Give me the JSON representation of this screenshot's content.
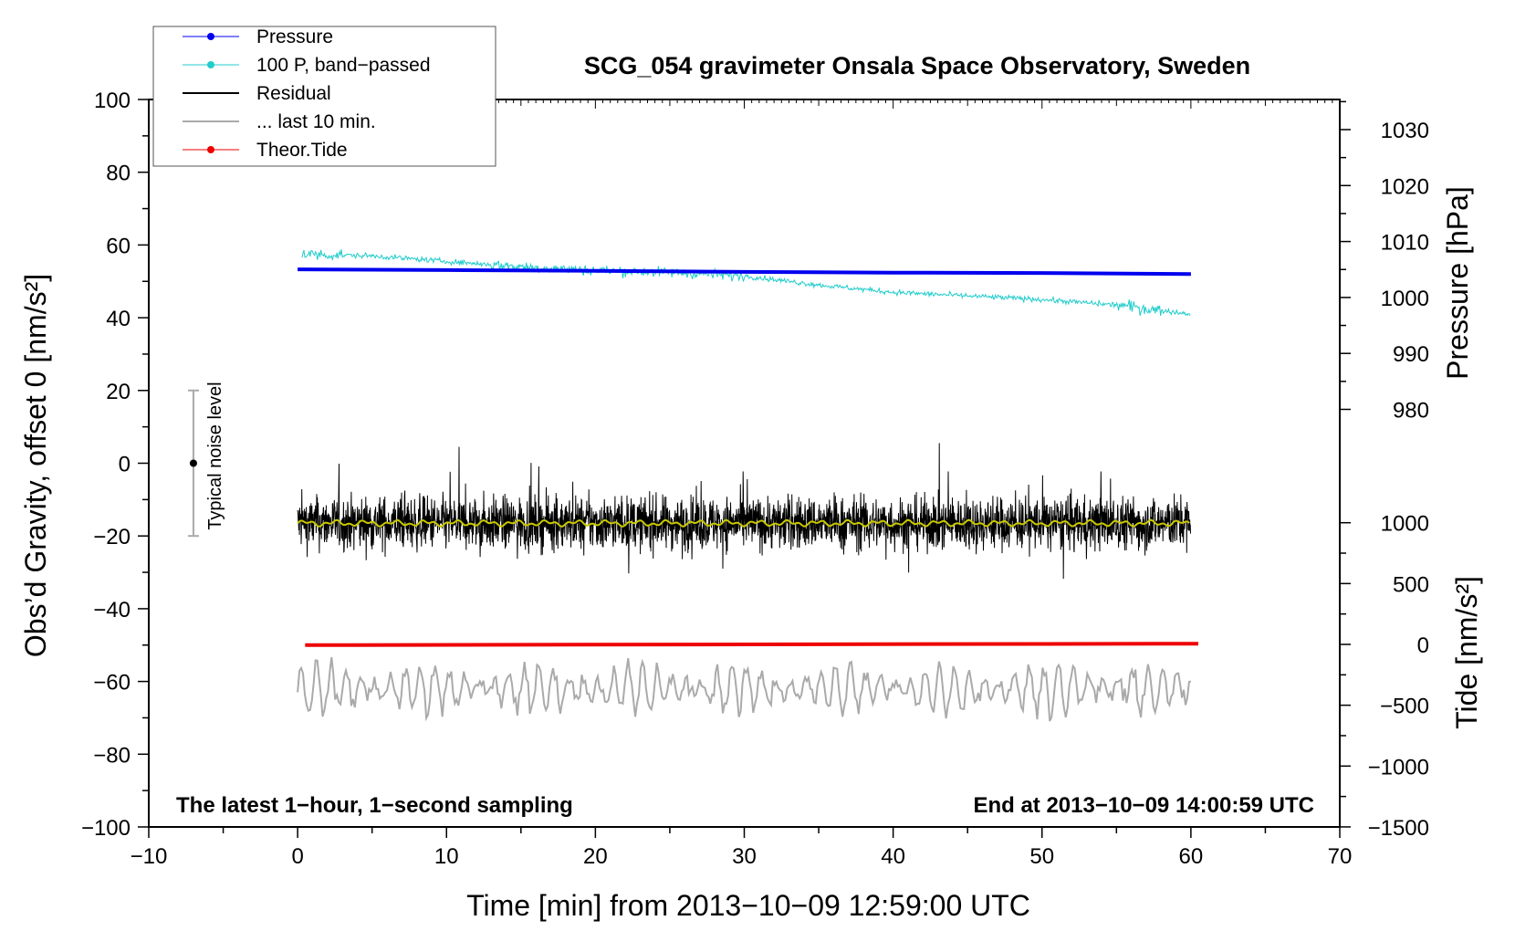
{
  "chart_data": {
    "type": "line",
    "title": "SCG_054 gravimeter Onsala Space Observatory, Sweden",
    "xlabel": "Time [min] from 2013−10−09 12:59:00 UTC",
    "ylabel_left": "Obs’d Gravity, offset 0 [nm/s²]",
    "ylabel_right_pressure": "Pressure [hPa]",
    "ylabel_right_tide": "Tide [nm/s²]",
    "xlim": [
      -10,
      70
    ],
    "ylim_left": [
      -100,
      100
    ],
    "pressure_axis": {
      "ticks": [
        1030,
        1020,
        1010,
        1000,
        990,
        980
      ],
      "range": [
        975,
        1035
      ]
    },
    "tide_axis": {
      "ticks": [
        1000,
        500,
        0,
        -500,
        -1000,
        -1500
      ],
      "range": [
        -1500,
        1500
      ]
    },
    "x_ticks": [
      "−10",
      "0",
      "10",
      "20",
      "30",
      "40",
      "50",
      "60",
      "70"
    ],
    "x_tick_values": [
      -10,
      0,
      10,
      20,
      30,
      40,
      50,
      60,
      70
    ],
    "y_ticks_left": [
      "100",
      "80",
      "60",
      "40",
      "20",
      "0",
      "−20",
      "−40",
      "−60",
      "−80",
      "−100"
    ],
    "y_tick_values_left": [
      100,
      80,
      60,
      40,
      20,
      0,
      -20,
      -40,
      -60,
      -80,
      -100
    ],
    "pressure_tick_labels": [
      "1030",
      "1020",
      "1010",
      "1000",
      "990",
      "980"
    ],
    "tide_tick_labels": [
      "1000",
      "500",
      "0",
      "−500",
      "−1000",
      "−1500"
    ],
    "legend": [
      {
        "name": "Pressure",
        "color": "#0000ee",
        "marker": true
      },
      {
        "name": "100 P, band−passed",
        "color": "#22cccc",
        "marker": true
      },
      {
        "name": "Residual",
        "color": "#000000",
        "marker": false
      },
      {
        "name": "... last 10 min.",
        "color": "#aaaaaa",
        "marker": false
      },
      {
        "name": "Theor.Tide",
        "color": "#ee0000",
        "marker": true
      }
    ],
    "series": [
      {
        "name": "Pressure",
        "color": "#0000ee",
        "x": [
          0,
          10,
          20,
          30,
          40,
          50,
          60
        ],
        "values": [
          53.3,
          53.1,
          52.9,
          52.6,
          52.4,
          52.3,
          52.0
        ]
      },
      {
        "name": "100 P, band−passed",
        "color": "#22cccc",
        "x": [
          0,
          5,
          10,
          15,
          20,
          25,
          30,
          35,
          40,
          45,
          50,
          55,
          60
        ],
        "values": [
          57.5,
          57,
          55.5,
          54,
          53,
          52.5,
          51.5,
          49,
          47,
          46,
          45,
          43.5,
          41
        ]
      },
      {
        "name": "Residual",
        "color": "#000000",
        "center": -16.5,
        "amplitude": 6.5
      },
      {
        "name": "Residual smoothed",
        "color": "#c8c800",
        "center": -16.5
      },
      {
        "name": "Theor.Tide",
        "color": "#ee0000",
        "x": [
          0.5,
          60.5
        ],
        "values": [
          -50.0,
          -49.6
        ]
      },
      {
        "name": "... last 10 min.",
        "color": "#aaaaaa",
        "center": -62,
        "amplitude": 6
      }
    ],
    "noise_bar": {
      "label": "Typical noise level",
      "x": -7,
      "center": 0,
      "half_range": 20
    },
    "footer_left": "The latest 1−hour, 1−second sampling",
    "footer_right": "End at 2013−10−09 14:00:59 UTC"
  }
}
